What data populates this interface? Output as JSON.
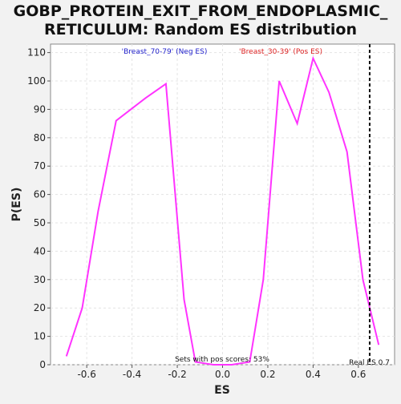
{
  "chart_data": {
    "type": "line",
    "title_lines": [
      "GOBP_PROTEIN_EXIT_FROM_ENDOPLASMIC_",
      "RETICULUM: Random ES distribution"
    ],
    "xlabel": "ES",
    "ylabel": "P(ES)",
    "xlim": [
      -0.76,
      0.76
    ],
    "ylim": [
      0,
      113
    ],
    "xticks": [
      -0.6,
      -0.4,
      -0.2,
      0.0,
      0.2,
      0.4,
      0.6
    ],
    "xtick_labels": [
      "-0.6",
      "-0.4",
      "-0.2",
      "0.0",
      "0.2",
      "0.4",
      "0.6"
    ],
    "yticks": [
      0,
      10,
      20,
      30,
      40,
      50,
      60,
      70,
      80,
      90,
      100,
      110
    ],
    "ytick_labels": [
      "0",
      "10",
      "20",
      "30",
      "40",
      "50",
      "60",
      "70",
      "80",
      "90",
      "100",
      "110"
    ],
    "grid": true,
    "legend": [
      {
        "label": "'Breast_70-79' (Neg ES)",
        "color": "#2222cc"
      },
      {
        "label": "'Breast_30-39' (Pos ES)",
        "color": "#dd2222"
      }
    ],
    "series": [
      {
        "color": "#ff33ff",
        "x": [
          -0.69,
          -0.62,
          -0.55,
          -0.47,
          -0.34,
          -0.25,
          -0.21,
          -0.17,
          -0.12,
          -0.04,
          0.04,
          0.12,
          0.18,
          0.25,
          0.33,
          0.4,
          0.47,
          0.55,
          0.62,
          0.69
        ],
        "y": [
          3,
          20,
          54,
          86,
          94,
          99,
          61,
          23,
          1,
          0,
          0,
          1,
          30,
          100,
          85,
          108,
          96,
          75,
          30,
          7
        ]
      }
    ],
    "real_es": {
      "value": 0.65,
      "label": "Real ES 0.7",
      "color": "#111111"
    },
    "annotation": "Sets with pos scores: 53%"
  }
}
